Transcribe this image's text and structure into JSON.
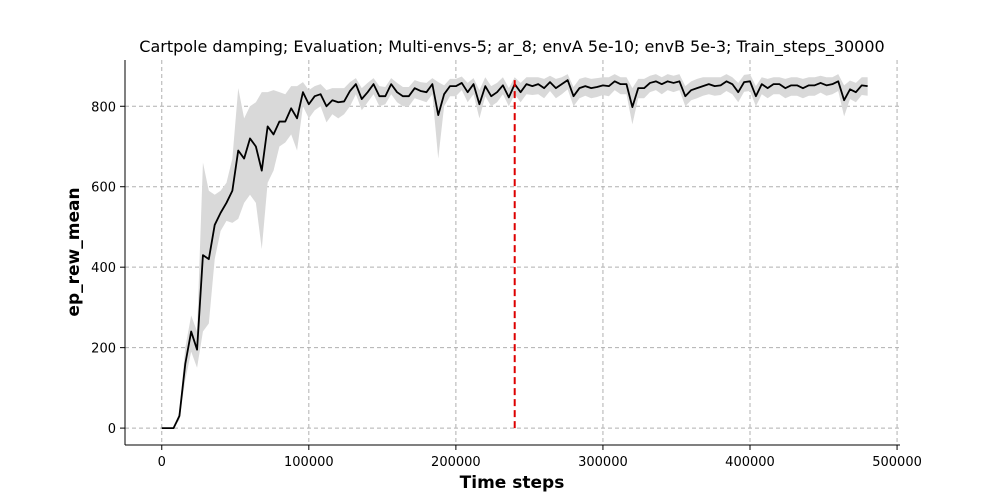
{
  "chart_data": {
    "type": "line",
    "title": "Cartpole damping; Evaluation; Multi-envs-5; ar_8; envA 5e-10; envB 5e-3; Train_steps_30000",
    "xlabel": "Time steps",
    "ylabel": "ep_rew_mean",
    "xlim": [
      -25000,
      502000
    ],
    "ylim": [
      -42,
      915
    ],
    "xticks": [
      0,
      100000,
      200000,
      300000,
      400000,
      500000
    ],
    "yticks": [
      0,
      200,
      400,
      600,
      800
    ],
    "grid": true,
    "colors": {
      "mean_line": "#000000",
      "band": "#d9d9d9",
      "vline": "#dd0000"
    },
    "vline": {
      "x": 240000,
      "style": "dashed",
      "color": "#dd0000"
    },
    "series": [
      {
        "x": [
          0,
          5000,
          8000,
          12000,
          16000,
          20000,
          24000,
          28000,
          32000,
          36000,
          40000,
          44000,
          48000,
          52000,
          56000,
          60000,
          64000,
          68000,
          72000,
          76000,
          80000,
          84000,
          88000,
          92000,
          96000,
          100000,
          104000,
          108000,
          112000,
          116000,
          120000,
          124000,
          128000,
          132000,
          136000,
          140000,
          144000,
          148000,
          152000,
          156000,
          160000,
          164000,
          168000,
          172000,
          176000,
          180000,
          184000,
          188000,
          192000,
          196000,
          200000,
          204000,
          208000,
          212000,
          216000,
          220000,
          224000,
          228000,
          232000,
          236000,
          240000,
          244000,
          248000,
          252000,
          256000,
          260000,
          264000,
          268000,
          272000,
          276000,
          280000,
          284000,
          288000,
          292000,
          296000,
          300000,
          304000,
          308000,
          312000,
          316000,
          320000,
          324000,
          328000,
          332000,
          336000,
          340000,
          344000,
          348000,
          352000,
          356000,
          360000,
          364000,
          368000,
          372000,
          376000,
          380000,
          384000,
          388000,
          392000,
          396000,
          400000,
          404000,
          408000,
          412000,
          416000,
          420000,
          424000,
          428000,
          432000,
          436000,
          440000,
          444000,
          448000,
          452000,
          456000,
          460000,
          464000,
          468000,
          472000,
          476000,
          480000
        ],
        "values": [
          0,
          0,
          0,
          30,
          160,
          240,
          195,
          430,
          420,
          505,
          535,
          560,
          590,
          690,
          670,
          720,
          700,
          640,
          750,
          730,
          762,
          762,
          795,
          770,
          835,
          805,
          825,
          830,
          800,
          815,
          810,
          812,
          838,
          855,
          818,
          835,
          855,
          825,
          825,
          855,
          835,
          825,
          825,
          845,
          838,
          835,
          855,
          778,
          830,
          850,
          850,
          858,
          835,
          855,
          805,
          850,
          825,
          835,
          852,
          822,
          855,
          835,
          855,
          850,
          855,
          845,
          860,
          845,
          855,
          865,
          825,
          845,
          850,
          845,
          848,
          852,
          850,
          862,
          855,
          855,
          798,
          845,
          845,
          858,
          862,
          855,
          862,
          858,
          862,
          825,
          840,
          845,
          850,
          855,
          850,
          852,
          862,
          855,
          835,
          860,
          862,
          825,
          855,
          845,
          855,
          855,
          845,
          852,
          852,
          845,
          852,
          852,
          858,
          852,
          855,
          862,
          815,
          842,
          835,
          852,
          850
        ],
        "lower": [
          0,
          0,
          0,
          20,
          120,
          190,
          150,
          240,
          260,
          420,
          490,
          515,
          510,
          520,
          560,
          580,
          560,
          445,
          610,
          640,
          700,
          710,
          730,
          690,
          800,
          770,
          790,
          800,
          760,
          780,
          770,
          780,
          800,
          830,
          790,
          810,
          830,
          800,
          805,
          830,
          810,
          800,
          800,
          820,
          815,
          810,
          830,
          670,
          800,
          825,
          825,
          840,
          810,
          830,
          770,
          825,
          800,
          810,
          830,
          800,
          830,
          810,
          830,
          828,
          830,
          820,
          838,
          820,
          830,
          842,
          800,
          820,
          826,
          820,
          823,
          828,
          825,
          840,
          830,
          830,
          755,
          820,
          820,
          835,
          840,
          830,
          840,
          835,
          840,
          800,
          815,
          820,
          826,
          830,
          826,
          828,
          838,
          830,
          810,
          836,
          838,
          800,
          830,
          820,
          830,
          830,
          820,
          826,
          826,
          820,
          826,
          826,
          834,
          826,
          830,
          838,
          775,
          818,
          810,
          828,
          826
        ],
        "upper": [
          0,
          0,
          0,
          40,
          200,
          280,
          240,
          660,
          590,
          580,
          590,
          610,
          670,
          845,
          770,
          800,
          810,
          835,
          835,
          840,
          835,
          830,
          850,
          850,
          860,
          840,
          850,
          855,
          840,
          845,
          845,
          845,
          860,
          870,
          845,
          858,
          870,
          850,
          848,
          870,
          858,
          848,
          848,
          865,
          860,
          858,
          870,
          860,
          852,
          868,
          868,
          874,
          858,
          870,
          840,
          872,
          850,
          858,
          872,
          845,
          872,
          858,
          872,
          872,
          872,
          868,
          876,
          868,
          872,
          880,
          848,
          868,
          872,
          868,
          870,
          872,
          872,
          880,
          872,
          872,
          845,
          868,
          868,
          876,
          880,
          872,
          880,
          876,
          880,
          850,
          862,
          868,
          872,
          872,
          872,
          872,
          880,
          872,
          858,
          878,
          880,
          850,
          872,
          868,
          872,
          872,
          868,
          872,
          872,
          868,
          872,
          872,
          876,
          872,
          872,
          880,
          852,
          864,
          858,
          872,
          872
        ]
      }
    ]
  }
}
